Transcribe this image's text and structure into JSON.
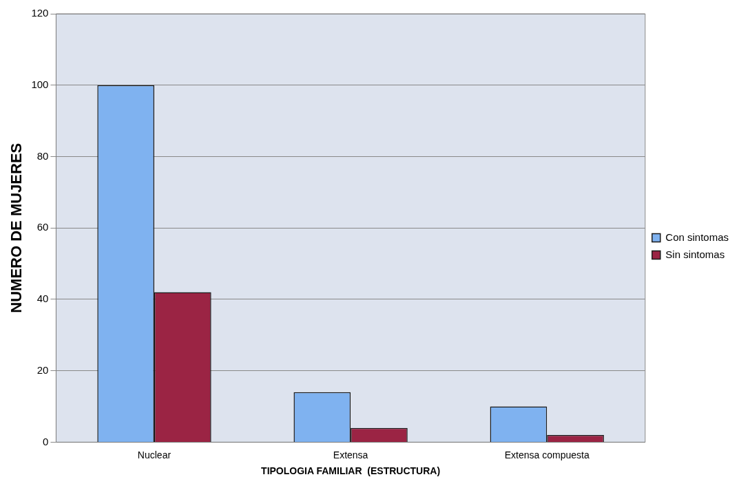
{
  "chart_data": {
    "type": "bar",
    "xlabel": "TIPOLOGIA FAMILIAR  (ESTRUCTURA)",
    "ylabel": "NUMERO DE MUJERES",
    "categories": [
      "Nuclear",
      "Extensa",
      "Extensa compuesta"
    ],
    "series": [
      {
        "name": "Con sintomas",
        "color": "#7fb2f0",
        "values": [
          100,
          14,
          10
        ]
      },
      {
        "name": "Sin sintomas",
        "color": "#9b2444",
        "values": [
          42,
          4,
          2
        ]
      }
    ],
    "ylim": [
      0,
      120
    ],
    "yticks": [
      0,
      20,
      40,
      60,
      80,
      100,
      120
    ],
    "grid": "y",
    "legend": "right"
  }
}
